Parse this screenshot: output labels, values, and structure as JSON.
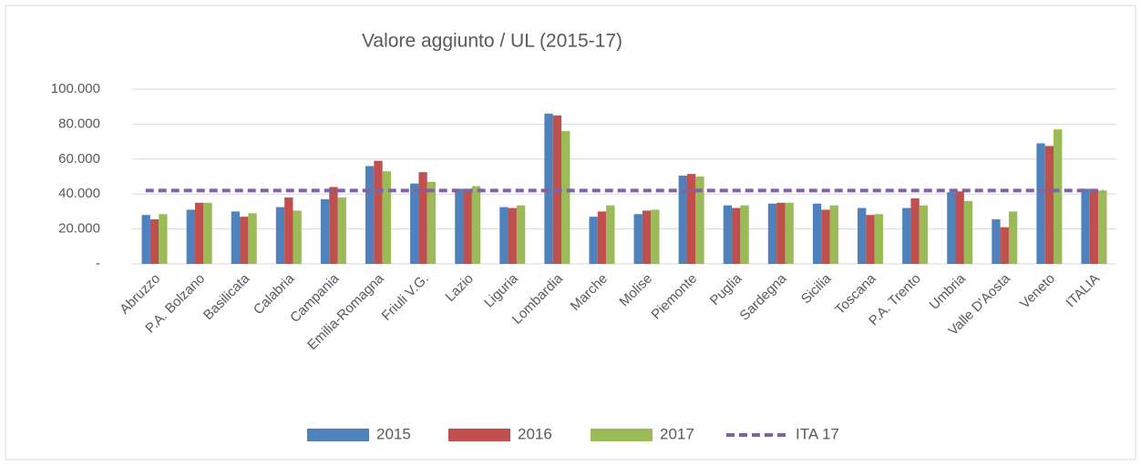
{
  "chart_data": {
    "type": "bar",
    "title": "Valore aggiunto / UL (2015-17)",
    "categories": [
      "Abruzzo",
      "P.A. Bolzano",
      "Basilicata",
      "Calabria",
      "Campania",
      "Emilia-Romagna",
      "Friuli V.G.",
      "Lazio",
      "Liguria",
      "Lombardia",
      "Marche",
      "Molise",
      "Piemonte",
      "Puglia",
      "Sardegna",
      "Sicilia",
      "Toscana",
      "P.A. Trento",
      "Umbria",
      "Valle D'Aosta",
      "Veneto",
      "ITALIA"
    ],
    "series": [
      {
        "name": "2015",
        "color": "#4f81bd",
        "values": [
          28000,
          31000,
          30000,
          32500,
          37000,
          56000,
          46000,
          43000,
          32500,
          86000,
          27000,
          28500,
          50500,
          33500,
          34500,
          34500,
          32000,
          32000,
          41000,
          25500,
          69000,
          43000
        ]
      },
      {
        "name": "2016",
        "color": "#c0504d",
        "values": [
          25500,
          35000,
          27000,
          38000,
          44000,
          59000,
          52500,
          43000,
          32000,
          85000,
          30000,
          30500,
          51500,
          32000,
          35000,
          31000,
          28000,
          37500,
          41500,
          21000,
          67500,
          42500
        ]
      },
      {
        "name": "2017",
        "color": "#9bbb59",
        "values": [
          28500,
          35000,
          29000,
          30500,
          38000,
          53000,
          47000,
          44500,
          33500,
          76000,
          33500,
          31000,
          50000,
          33500,
          35000,
          33500,
          28500,
          33500,
          36000,
          30000,
          77000,
          42000
        ]
      },
      {
        "name": "ITA 17",
        "color": "#8064a2",
        "type": "line",
        "dashed": true,
        "values": [
          42000,
          42000,
          42000,
          42000,
          42000,
          42000,
          42000,
          42000,
          42000,
          42000,
          42000,
          42000,
          42000,
          42000,
          42000,
          42000,
          42000,
          42000,
          42000,
          42000,
          42000,
          42000
        ]
      }
    ],
    "ylim": [
      0,
      100000
    ],
    "yticks": [
      {
        "value": 0,
        "label": "-"
      },
      {
        "value": 20000,
        "label": "20.000"
      },
      {
        "value": 40000,
        "label": "40.000"
      },
      {
        "value": 60000,
        "label": "60.000"
      },
      {
        "value": 80000,
        "label": "80.000"
      },
      {
        "value": 100000,
        "label": "100.000"
      }
    ],
    "grid": true,
    "legend": "bottom"
  }
}
